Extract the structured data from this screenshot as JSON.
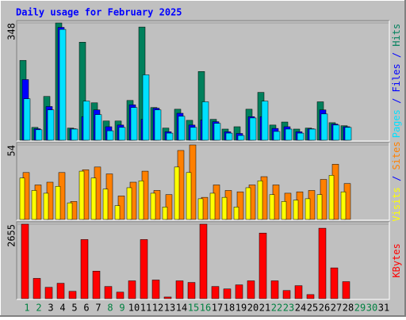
{
  "chart_data": [
    {
      "type": "bar",
      "title": "Daily usage for February 2025",
      "legend_separator": " / ",
      "ylim": [
        0,
        348
      ],
      "yticks": [
        348
      ],
      "series": [
        {
          "name": "Hits",
          "color": "#00805c",
          "values": [
            237,
            38,
            130,
            348,
            36,
            291,
            111,
            57,
            57,
            118,
            336,
            97,
            36,
            92,
            59,
            204,
            62,
            33,
            40,
            92,
            142,
            45,
            54,
            33,
            36,
            114,
            52,
            43,
            0,
            0,
            0
          ]
        },
        {
          "name": "Files",
          "color": "#0000ff",
          "values": [
            180,
            34,
            100,
            335,
            34,
            70,
            90,
            40,
            45,
            105,
            62,
            95,
            25,
            80,
            45,
            60,
            55,
            25,
            20,
            70,
            70,
            35,
            40,
            25,
            34,
            90,
            48,
            40,
            0,
            0,
            0
          ]
        },
        {
          "name": "Pages",
          "color": "#00e0ff",
          "values": [
            123,
            31,
            90,
            329,
            33,
            116,
            76,
            28,
            38,
            97,
            194,
            90,
            21,
            71,
            38,
            114,
            50,
            21,
            14,
            66,
            116,
            26,
            33,
            21,
            33,
            78,
            45,
            38,
            0,
            0,
            0
          ]
        }
      ]
    },
    {
      "type": "bar",
      "legend_separator": " / ",
      "ylim": [
        0,
        54
      ],
      "yticks": [
        54
      ],
      "series": [
        {
          "name": "Sites",
          "color": "#ff8000",
          "values": [
            34,
            25,
            27,
            34,
            13,
            36,
            38,
            33,
            17,
            27,
            35,
            21,
            18,
            50,
            54,
            16,
            25,
            21,
            20,
            25,
            31,
            25,
            19,
            20,
            21,
            29,
            40,
            26,
            0,
            0,
            0
          ]
        },
        {
          "name": "Visits",
          "color": "#ffff00",
          "values": [
            30,
            21,
            19,
            24,
            12,
            35,
            30,
            22,
            10,
            23,
            28,
            19,
            9,
            38,
            34,
            15,
            19,
            16,
            9,
            23,
            28,
            18,
            13,
            14,
            15,
            18,
            32,
            20,
            0,
            0,
            0
          ]
        }
      ]
    },
    {
      "type": "bar",
      "ylim": [
        0,
        2655
      ],
      "yticks": [
        2655
      ],
      "categories": [
        "1",
        "2",
        "3",
        "4",
        "5",
        "6",
        "7",
        "8",
        "9",
        "10",
        "11",
        "12",
        "13",
        "14",
        "15",
        "16",
        "17",
        "18",
        "19",
        "20",
        "21",
        "22",
        "23",
        "24",
        "25",
        "26",
        "27",
        "28",
        "29",
        "30",
        "31"
      ],
      "category_colors": [
        "#008040",
        "#008040",
        "#000000",
        "#000000",
        "#000000",
        "#000000",
        "#000000",
        "#008040",
        "#008040",
        "#000000",
        "#000000",
        "#000000",
        "#000000",
        "#000000",
        "#008040",
        "#008040",
        "#000000",
        "#000000",
        "#000000",
        "#000000",
        "#000000",
        "#008040",
        "#008040",
        "#000000",
        "#000000",
        "#000000",
        "#000000",
        "#000000",
        "#008040",
        "#008040",
        "#000000"
      ],
      "series": [
        {
          "name": "KBytes",
          "color": "#ff0000",
          "values": [
            2655,
            722,
            404,
            548,
            260,
            2107,
            981,
            433,
            231,
            635,
            2107,
            664,
            58,
            635,
            577,
            2655,
            433,
            346,
            491,
            635,
            2338,
            635,
            289,
            462,
            144,
            2511,
            1097,
            606,
            0,
            0,
            0
          ]
        }
      ]
    }
  ]
}
